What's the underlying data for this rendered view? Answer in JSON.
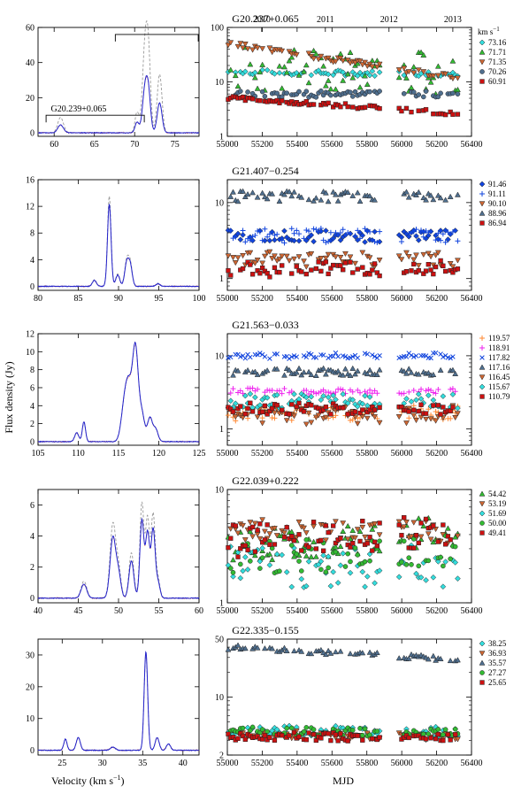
{
  "figure": {
    "y_label": "Flux density (Jy)",
    "x_label_spectrum": "Velocity (km s",
    "x_label_spectrum_sup": "−1",
    "x_label_spectrum_end": ")",
    "x_label_lightcurve": "MJD",
    "legend_unit": "km s",
    "legend_unit_sup": "−1",
    "top_year_labels": [
      "2010",
      "2011",
      "2012",
      "2013"
    ],
    "top_year_mjd": [
      55197,
      55562,
      55927,
      56293
    ]
  },
  "colors": {
    "spectrum_main": "#2222cc",
    "spectrum_dash": "#999999",
    "spectrum_red": "#dd3300",
    "cyan": "#33dddd",
    "green": "#33bb33",
    "brown": "#cc6633",
    "slate": "#4f6f8f",
    "red": "#cc1111",
    "blue": "#1144dd",
    "magenta": "#ee22ee",
    "orange": "#ff8833"
  },
  "chart_data": [
    {
      "type": "line",
      "title": "G20.237+0.065",
      "sub_labels": [
        "G20.239+0.065"
      ],
      "xlim": [
        58,
        78
      ],
      "ylim": [
        -2,
        60
      ],
      "xticks": [
        60,
        65,
        70,
        75
      ],
      "yticks": [
        0,
        20,
        40,
        60
      ],
      "peaks": [
        {
          "v": 60.8,
          "a": 4.5,
          "w": 0.35
        },
        {
          "v": 70.3,
          "a": 6.0,
          "w": 0.25
        },
        {
          "v": 71.25,
          "a": 22.0,
          "w": 0.3
        },
        {
          "v": 71.7,
          "a": 22.0,
          "w": 0.28
        },
        {
          "v": 73.1,
          "a": 17.0,
          "w": 0.3
        }
      ],
      "dashed_peak_max": 57,
      "brackets": [
        [
          59,
          71.2,
          10
        ],
        [
          67.6,
          77.9,
          56
        ]
      ],
      "lightcurve": {
        "type": "scatter",
        "xlim": [
          55000,
          56400
        ],
        "yscale": "log",
        "ylim": [
          1,
          100
        ],
        "ymajor": [
          1,
          10,
          100
        ],
        "yminor": [
          2,
          3,
          4,
          5,
          6,
          7,
          8,
          9,
          20,
          30,
          40,
          50,
          60,
          70,
          80,
          90
        ],
        "show_top_axis": true,
        "series": [
          {
            "name": "73.16",
            "marker": "diamond",
            "color": "cyan",
            "start": 15,
            "end": 14,
            "amp": 0.05
          },
          {
            "name": "71.71",
            "marker": "triangle-up",
            "color": "green",
            "start": 18,
            "end": 14,
            "amp": 0.4
          },
          {
            "name": "71.35",
            "marker": "triangle-down",
            "color": "brown",
            "start": 50,
            "end": 11,
            "amp": 0.05
          },
          {
            "name": "70.26",
            "marker": "circle",
            "color": "slate",
            "start": 6,
            "end": 6,
            "amp": 0.06
          },
          {
            "name": "60.91",
            "marker": "square",
            "color": "red",
            "start": 5.2,
            "end": 2.5,
            "amp": 0.04
          }
        ]
      }
    },
    {
      "type": "line",
      "title": "G21.407−0.254",
      "xlim": [
        80,
        100
      ],
      "ylim": [
        -0.6,
        16
      ],
      "xticks": [
        80,
        85,
        90,
        95,
        100
      ],
      "yticks": [
        0,
        4,
        8,
        12,
        16
      ],
      "peaks": [
        {
          "v": 87.0,
          "a": 0.9,
          "w": 0.25
        },
        {
          "v": 88.85,
          "a": 12.3,
          "w": 0.22
        },
        {
          "v": 89.9,
          "a": 1.7,
          "w": 0.25
        },
        {
          "v": 91.0,
          "a": 3.3,
          "w": 0.25
        },
        {
          "v": 91.45,
          "a": 3.1,
          "w": 0.25
        },
        {
          "v": 94.9,
          "a": 0.4,
          "w": 0.25
        }
      ],
      "dashed_peak_max": 13.5,
      "brackets": [],
      "lightcurve": {
        "type": "scatter",
        "xlim": [
          55000,
          56400
        ],
        "yscale": "log",
        "ylim": [
          0.7,
          20
        ],
        "ymajor": [
          1,
          10
        ],
        "yminor": [
          0.8,
          0.9,
          2,
          3,
          4,
          5,
          6,
          7,
          8,
          9,
          20
        ],
        "show_top_axis": false,
        "series": [
          {
            "name": "91.46",
            "marker": "diamond",
            "color": "blue",
            "start": 3.6,
            "end": 3.6,
            "amp": 0.08
          },
          {
            "name": "91.11",
            "marker": "plus",
            "color": "blue",
            "start": 3.7,
            "end": 3.7,
            "amp": 0.1
          },
          {
            "name": "90.10",
            "marker": "triangle-down",
            "color": "brown",
            "start": 1.8,
            "end": 1.8,
            "amp": 0.1
          },
          {
            "name": "88.96",
            "marker": "triangle-up",
            "color": "slate",
            "start": 12,
            "end": 12,
            "amp": 0.07
          },
          {
            "name": "86.94",
            "marker": "square",
            "color": "red",
            "start": 1.3,
            "end": 1.4,
            "amp": 0.1
          }
        ]
      }
    },
    {
      "type": "line",
      "title": "G21.563−0.033",
      "xlim": [
        105,
        125
      ],
      "ylim": [
        -0.4,
        12
      ],
      "xticks": [
        105,
        110,
        115,
        120,
        125
      ],
      "yticks": [
        0,
        2,
        4,
        6,
        8,
        10,
        12
      ],
      "peaks": [
        {
          "v": 109.8,
          "a": 1.0,
          "w": 0.25
        },
        {
          "v": 110.7,
          "a": 2.2,
          "w": 0.2
        },
        {
          "v": 115.7,
          "a": 3.5,
          "w": 0.4
        },
        {
          "v": 116.3,
          "a": 5.5,
          "w": 0.4
        },
        {
          "v": 117.1,
          "a": 10.0,
          "w": 0.35
        },
        {
          "v": 117.9,
          "a": 3.0,
          "w": 0.35
        },
        {
          "v": 118.9,
          "a": 2.6,
          "w": 0.3
        },
        {
          "v": 119.6,
          "a": 1.4,
          "w": 0.3
        }
      ],
      "dashed_peak_max": 11,
      "brackets": [],
      "lightcurve": {
        "type": "scatter",
        "xlim": [
          55000,
          56400
        ],
        "yscale": "log",
        "ylim": [
          0.6,
          20
        ],
        "ymajor": [
          1,
          10
        ],
        "yminor": [
          0.7,
          0.8,
          0.9,
          2,
          3,
          4,
          5,
          6,
          7,
          8,
          9,
          20
        ],
        "show_top_axis": false,
        "series": [
          {
            "name": "119.57",
            "marker": "plus",
            "color": "orange",
            "start": 1.6,
            "end": 1.7,
            "amp": 0.1
          },
          {
            "name": "118.91",
            "marker": "plus",
            "color": "magenta",
            "start": 3.3,
            "end": 3.3,
            "amp": 0.04
          },
          {
            "name": "117.82",
            "marker": "x",
            "color": "blue",
            "start": 10,
            "end": 10,
            "amp": 0.04
          },
          {
            "name": "117.16",
            "marker": "triangle-up",
            "color": "slate",
            "start": 6,
            "end": 6,
            "amp": 0.05
          },
          {
            "name": "116.45",
            "marker": "triangle-down",
            "color": "brown",
            "start": 1.5,
            "end": 1.6,
            "amp": 0.12
          },
          {
            "name": "115.67",
            "marker": "diamond",
            "color": "cyan",
            "start": 2.4,
            "end": 2.4,
            "amp": 0.1
          },
          {
            "name": "110.79",
            "marker": "square",
            "color": "red",
            "start": 1.9,
            "end": 1.9,
            "amp": 0.08
          }
        ]
      }
    },
    {
      "type": "line",
      "title": "G22.039+0.222",
      "xlim": [
        40,
        60
      ],
      "ylim": [
        -0.3,
        7
      ],
      "xticks": [
        40,
        45,
        50,
        55,
        60
      ],
      "yticks": [
        0,
        2,
        4,
        6
      ],
      "peaks": [
        {
          "v": 45.7,
          "a": 0.9,
          "w": 0.35
        },
        {
          "v": 49.3,
          "a": 3.9,
          "w": 0.35
        },
        {
          "v": 50.0,
          "a": 1.5,
          "w": 0.3
        },
        {
          "v": 51.6,
          "a": 2.4,
          "w": 0.3
        },
        {
          "v": 52.9,
          "a": 5.0,
          "w": 0.25
        },
        {
          "v": 53.6,
          "a": 4.2,
          "w": 0.25
        },
        {
          "v": 54.3,
          "a": 4.4,
          "w": 0.25
        },
        {
          "v": 54.9,
          "a": 1.0,
          "w": 0.25
        }
      ],
      "dashed_peak_max": 6.2,
      "brackets": [],
      "lightcurve": {
        "type": "scatter",
        "xlim": [
          55000,
          56400
        ],
        "yscale": "log",
        "ylim": [
          1,
          10
        ],
        "ymajor": [
          1,
          10
        ],
        "yminor": [
          2,
          3,
          4,
          5,
          6,
          7,
          8,
          9
        ],
        "show_top_axis": false,
        "series": [
          {
            "name": "54.42",
            "marker": "triangle-up",
            "color": "green",
            "start": 3.0,
            "end": 4.5,
            "amp": 0.15
          },
          {
            "name": "53.19",
            "marker": "triangle-down",
            "color": "brown",
            "start": 4.5,
            "end": 4.2,
            "amp": 0.1
          },
          {
            "name": "51.69",
            "marker": "diamond",
            "color": "cyan",
            "start": 2.0,
            "end": 2.2,
            "amp": 0.2
          },
          {
            "name": "50.00",
            "marker": "circle",
            "color": "green",
            "start": 2.5,
            "end": 2.8,
            "amp": 0.15
          },
          {
            "name": "49.41",
            "marker": "square",
            "color": "red",
            "start": 3.5,
            "end": 4.5,
            "amp": 0.15
          }
        ]
      }
    },
    {
      "type": "line",
      "title": "G22.335−0.155",
      "xlim": [
        22,
        42
      ],
      "ylim": [
        -1.5,
        35
      ],
      "xticks": [
        25,
        30,
        35,
        40
      ],
      "yticks": [
        0,
        10,
        20,
        30
      ],
      "peaks": [
        {
          "v": 25.4,
          "a": 3.5,
          "w": 0.2
        },
        {
          "v": 27.0,
          "a": 4.0,
          "w": 0.25
        },
        {
          "v": 31.3,
          "a": 1.0,
          "w": 0.3
        },
        {
          "v": 35.4,
          "a": 31.0,
          "w": 0.22
        },
        {
          "v": 36.8,
          "a": 4.0,
          "w": 0.25
        },
        {
          "v": 38.2,
          "a": 2.0,
          "w": 0.25
        }
      ],
      "dashed_peak_max": 30.5,
      "brackets": [],
      "lightcurve": {
        "type": "scatter",
        "xlim": [
          55000,
          56400
        ],
        "yscale": "log",
        "ylim": [
          2,
          50
        ],
        "ymajor": [
          2,
          10
        ],
        "yminor": [
          3,
          4,
          5,
          6,
          7,
          8,
          9,
          20,
          30,
          40,
          50
        ],
        "extra_labels": [
          50
        ],
        "show_top_axis": false,
        "series": [
          {
            "name": "38.25",
            "marker": "diamond",
            "color": "cyan",
            "start": 4.0,
            "end": 3.8,
            "amp": 0.06
          },
          {
            "name": "36.93",
            "marker": "triangle-down",
            "color": "brown",
            "start": 3.6,
            "end": 3.3,
            "amp": 0.05
          },
          {
            "name": "35.57",
            "marker": "triangle-up",
            "color": "slate",
            "start": 40,
            "end": 28,
            "amp": 0.03
          },
          {
            "name": "27.27",
            "marker": "circle",
            "color": "green",
            "start": 3.9,
            "end": 3.7,
            "amp": 0.05
          },
          {
            "name": "25.65",
            "marker": "square",
            "color": "red",
            "start": 3.4,
            "end": 3.2,
            "amp": 0.05
          }
        ]
      }
    }
  ]
}
